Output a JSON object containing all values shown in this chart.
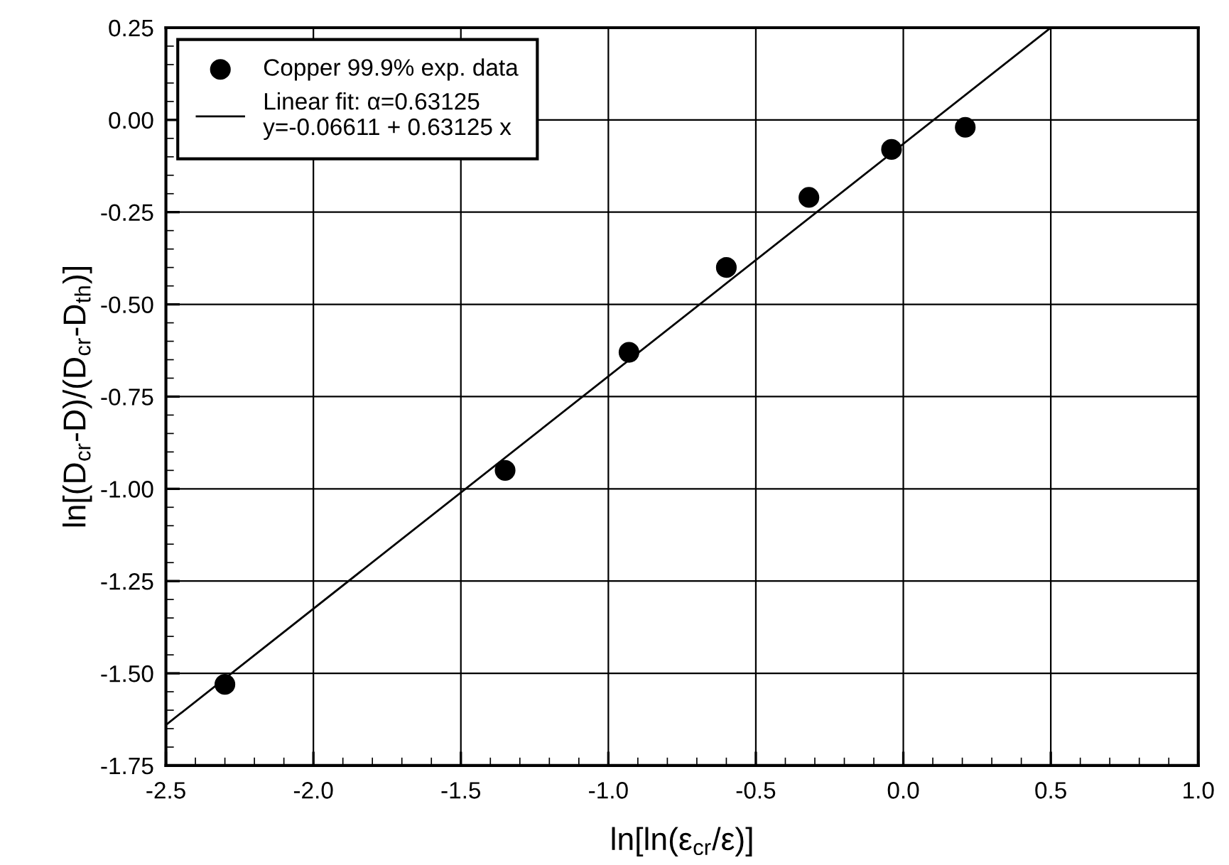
{
  "chart_data": {
    "type": "scatter",
    "xlabel": "ln[ln(ε$_{cr}$/ε)]",
    "ylabel": "ln[(D$_{cr}$-D)/(D$_{cr}$-D$_{th}$)]",
    "series": [
      {
        "name": "Copper 99.9% exp. data",
        "color": "#000000",
        "marker": "circle",
        "x": [
          -2.3,
          -1.35,
          -0.93,
          -0.6,
          -0.32,
          -0.04,
          0.21
        ],
        "values": [
          -1.53,
          -0.95,
          -0.63,
          -0.4,
          -0.21,
          -0.08,
          -0.02
        ]
      },
      {
        "name": "Linear fit: α=0.63125\ny=-0.06611 + 0.63125 x",
        "type": "line",
        "color": "#000000",
        "line_style": "solid",
        "x": [
          -2.5,
          0.5
        ],
        "values": [
          -1.64,
          0.25
        ]
      }
    ],
    "xlim": [
      -2.5,
      1.0
    ],
    "xticks": [
      {
        "value": -2.5,
        "label": "-2.5"
      },
      {
        "value": -2.0,
        "label": "-2.0"
      },
      {
        "value": -1.5,
        "label": "-1.5"
      },
      {
        "value": -1.0,
        "label": "-1.0"
      },
      {
        "value": -0.5,
        "label": "-0.5"
      },
      {
        "value": 0.0,
        "label": "0.0"
      },
      {
        "value": 0.5,
        "label": "0.5"
      },
      {
        "value": 1.0,
        "label": "1.0"
      }
    ],
    "ylim": [
      -1.75,
      0.25
    ],
    "yticks": [
      {
        "value": -1.75,
        "label": "-1.75"
      },
      {
        "value": -1.5,
        "label": "-1.50"
      },
      {
        "value": -1.25,
        "label": "-1.25"
      },
      {
        "value": -1.0,
        "label": "-1.00"
      },
      {
        "value": -0.75,
        "label": "-0.75"
      },
      {
        "value": -0.5,
        "label": "-0.50"
      },
      {
        "value": -0.25,
        "label": "-0.25"
      },
      {
        "value": 0.0,
        "label": "0.00"
      },
      {
        "value": 0.25,
        "label": "0.25"
      }
    ],
    "grid": true,
    "legend": "top left"
  }
}
